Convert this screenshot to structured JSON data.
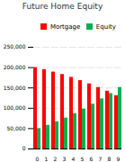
{
  "chart_data": {
    "type": "bar",
    "title": "Future Home Equity",
    "categories": [
      "0",
      "1",
      "2",
      "3",
      "4",
      "5",
      "6",
      "7",
      "8",
      "9"
    ],
    "series": [
      {
        "name": "Mortgage",
        "color": "#FF0000",
        "values": [
          200,
          195,
          189,
          183,
          176,
          168,
          160,
          151,
          142,
          131
        ]
      },
      {
        "name": "Equity",
        "color": "#00B050",
        "values": [
          50,
          58,
          67,
          76,
          87,
          98,
          110,
          123,
          136,
          151
        ]
      }
    ],
    "ylim": [
      0,
      250
    ],
    "yticks": [
      0,
      {
        "value": 50,
        "label": "50,000"
      },
      {
        "value": 100,
        "label": "100,000"
      },
      {
        "value": 150,
        "label": "150,000"
      },
      {
        "value": 200,
        "label": "200,000"
      },
      {
        "value": 250,
        "label": "250,000"
      }
    ],
    "grid": true,
    "legend": "upper right"
  }
}
